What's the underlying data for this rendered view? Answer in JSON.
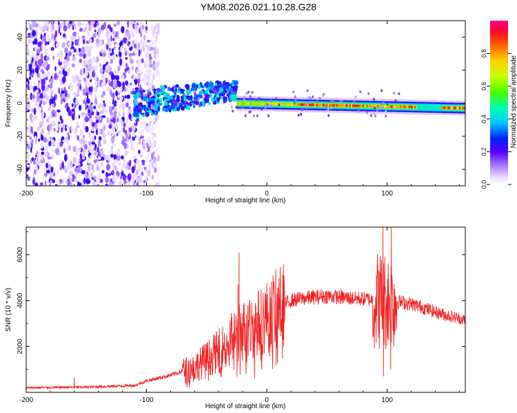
{
  "title": "YM08.2026.021.10.28.G28",
  "chart_data": [
    {
      "type": "heatmap",
      "name": "spectrogram",
      "xlabel": "Height of straight line (km)",
      "ylabel": "Frequency (Hz)",
      "xlim": [
        -200,
        165
      ],
      "ylim": [
        -50,
        50
      ],
      "xticks": [
        -200,
        -100,
        0,
        100
      ],
      "yticks": [
        -40,
        -20,
        0,
        20,
        40
      ],
      "colorbar": {
        "label": "Normalized spectral amplitude",
        "range": [
          0,
          1
        ],
        "ticks": [
          "0.0",
          "0.2",
          "0.4",
          "0.6",
          "0.8"
        ],
        "tick_values": [
          0,
          0.2,
          0.4,
          0.6,
          0.8
        ]
      },
      "features": {
        "noise_region_x": [
          -200,
          -105
        ],
        "burst_region_x": [
          -110,
          -25
        ],
        "burst_center_freq_start": 2,
        "burst_center_freq_end": 10,
        "stable_line_x": [
          -25,
          165
        ],
        "stable_line_freq_start": 0,
        "stable_line_freq_end": -3
      }
    },
    {
      "type": "line",
      "name": "snr",
      "xlabel": "Height of straight line (km)",
      "ylabel": "SNR (10 * v/v)",
      "xlim": [
        -200,
        165
      ],
      "ylim": [
        0,
        7200
      ],
      "xticks": [
        -200,
        -100,
        0,
        100
      ],
      "yticks": [
        2000,
        4000,
        6000
      ],
      "color": "#ee2222",
      "envelope": [
        [
          -200,
          200
        ],
        [
          -150,
          230
        ],
        [
          -110,
          300
        ],
        [
          -100,
          500
        ],
        [
          -80,
          750
        ],
        [
          -60,
          1100
        ],
        [
          -40,
          1800
        ],
        [
          -30,
          2300
        ],
        [
          -20,
          2700
        ],
        [
          -10,
          2900
        ],
        [
          0,
          3300
        ],
        [
          10,
          3700
        ],
        [
          20,
          4000
        ],
        [
          30,
          4100
        ],
        [
          50,
          4200
        ],
        [
          70,
          4100
        ],
        [
          90,
          4050
        ],
        [
          100,
          4000
        ],
        [
          110,
          3950
        ],
        [
          120,
          3850
        ],
        [
          130,
          3700
        ],
        [
          140,
          3500
        ],
        [
          150,
          3350
        ],
        [
          165,
          3150
        ]
      ],
      "spikes": [
        {
          "x": -23,
          "y": 6100
        },
        {
          "x": -24,
          "y": 4700
        },
        {
          "x": -9,
          "y": 3750
        },
        {
          "x": 10,
          "y": 3550
        },
        {
          "x": 95,
          "y": 5200
        },
        {
          "x": 96.5,
          "y": 7200
        },
        {
          "x": 103.5,
          "y": 7200
        },
        {
          "x": 97,
          "y": 700
        },
        {
          "x": 103,
          "y": 1000
        },
        {
          "x": -50,
          "y": 1650
        },
        {
          "x": -40,
          "y": 2200
        },
        {
          "x": -160,
          "y": 640
        }
      ]
    }
  ]
}
